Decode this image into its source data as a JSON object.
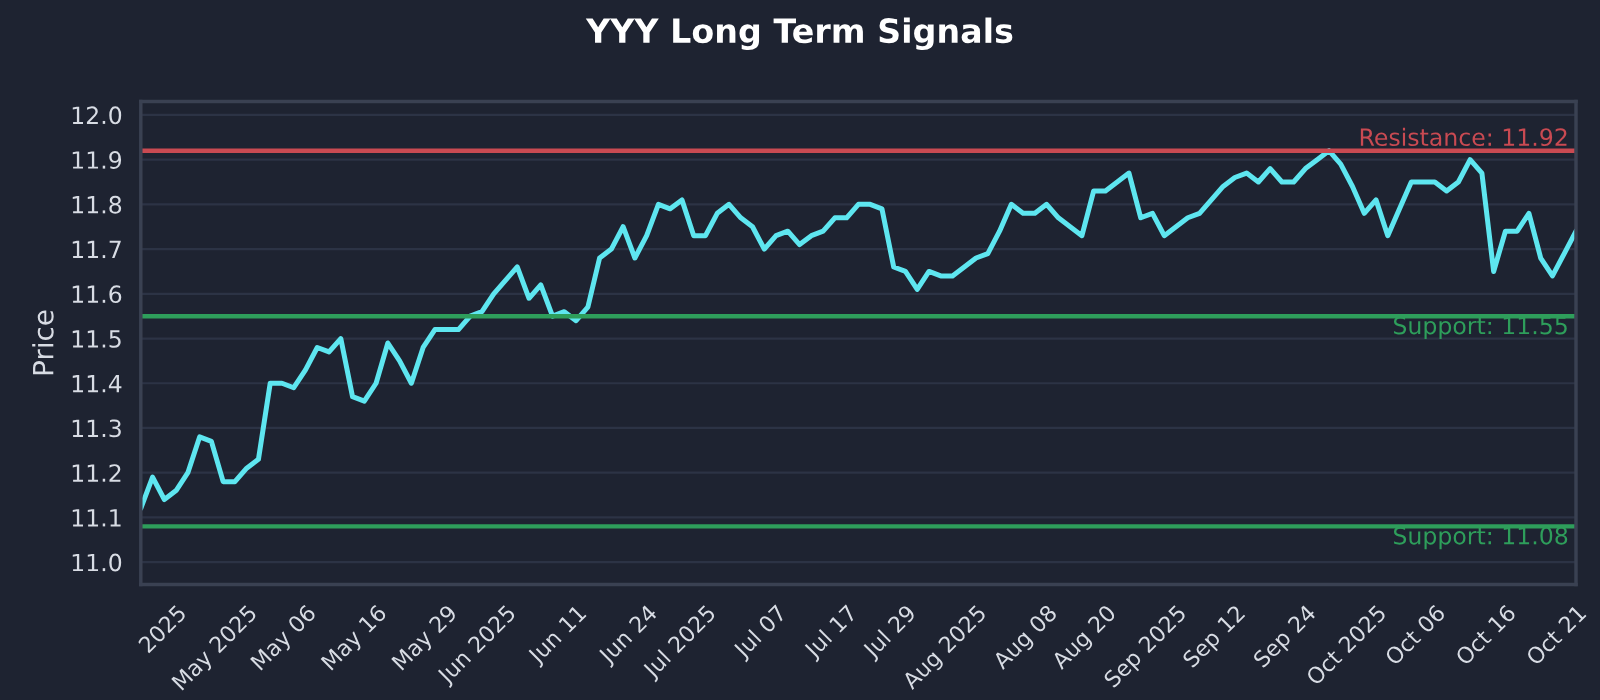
{
  "chart_data": {
    "type": "line",
    "title": "YYY Long Term Signals",
    "ylabel": "Price",
    "categories": [
      null,
      null,
      null,
      "2025",
      null,
      null,
      null,
      null,
      null,
      "May 2025",
      null,
      null,
      null,
      null,
      "May 06",
      null,
      null,
      null,
      null,
      null,
      "May 16",
      null,
      null,
      null,
      null,
      null,
      "May 29",
      null,
      null,
      null,
      null,
      "Jun 2025",
      null,
      null,
      null,
      null,
      null,
      "Jun 11",
      null,
      null,
      null,
      null,
      null,
      "Jun 24",
      null,
      null,
      null,
      null,
      "Jul 2025",
      null,
      null,
      null,
      null,
      null,
      "Jul 07",
      null,
      null,
      null,
      null,
      null,
      "Jul 17",
      null,
      null,
      null,
      null,
      "Jul 29",
      null,
      null,
      null,
      null,
      null,
      "Aug 2025",
      null,
      null,
      null,
      null,
      null,
      "Aug 08",
      null,
      null,
      null,
      null,
      "Aug 20",
      null,
      null,
      null,
      null,
      null,
      "Sep 2025",
      null,
      null,
      null,
      null,
      "Sep 12",
      null,
      null,
      null,
      null,
      null,
      "Sep 24",
      null,
      null,
      null,
      null,
      null,
      "Oct 2025",
      null,
      null,
      null,
      null,
      "Oct 06",
      null,
      null,
      null,
      null,
      null,
      "Oct 16",
      null,
      null,
      null,
      null,
      null,
      "Oct 21"
    ],
    "series": [
      {
        "color": "#5ee6f0",
        "values": [
          11.12,
          11.19,
          11.14,
          11.16,
          11.2,
          11.28,
          11.27,
          11.18,
          11.18,
          11.21,
          11.23,
          11.4,
          11.4,
          11.39,
          11.43,
          11.48,
          11.47,
          11.5,
          11.37,
          11.36,
          11.4,
          11.49,
          11.45,
          11.4,
          11.48,
          11.52,
          11.52,
          11.52,
          11.55,
          11.56,
          11.6,
          11.63,
          11.66,
          11.59,
          11.62,
          11.55,
          11.56,
          11.54,
          11.57,
          11.68,
          11.7,
          11.75,
          11.68,
          11.73,
          11.8,
          11.79,
          11.81,
          11.73,
          11.73,
          11.78,
          11.8,
          11.77,
          11.75,
          11.7,
          11.73,
          11.74,
          11.71,
          11.73,
          11.74,
          11.77,
          11.77,
          11.8,
          11.8,
          11.79,
          11.66,
          11.65,
          11.61,
          11.65,
          11.64,
          11.64,
          11.66,
          11.68,
          11.69,
          11.74,
          11.8,
          11.78,
          11.78,
          11.8,
          11.77,
          11.75,
          11.73,
          11.83,
          11.83,
          11.85,
          11.87,
          11.77,
          11.78,
          11.73,
          11.75,
          11.77,
          11.78,
          11.81,
          11.84,
          11.86,
          11.87,
          11.85,
          11.88,
          11.85,
          11.85,
          11.88,
          11.9,
          11.92,
          11.89,
          11.84,
          11.78,
          11.81,
          11.73,
          11.79,
          11.85,
          11.85,
          11.85,
          11.83,
          11.85,
          11.9,
          11.87,
          11.65,
          11.74,
          11.74,
          11.78,
          11.68,
          11.64,
          11.69,
          11.74
        ]
      }
    ],
    "ylim": [
      10.95,
      12.03
    ],
    "yticks": [
      {
        "value": 11.0,
        "label": "11.0"
      },
      11.1,
      11.2,
      11.3,
      11.4,
      11.5,
      11.6,
      11.7,
      11.8,
      11.9,
      {
        "value": 12.0,
        "label": "12.0"
      }
    ],
    "ref_lines": [
      {
        "axis": "y",
        "value": 11.92,
        "label": "Resistance: 11.92",
        "color": "#c94a52"
      },
      {
        "axis": "y",
        "value": 11.55,
        "label": "Support: 11.55",
        "color": "#2e9e5b"
      },
      {
        "axis": "y",
        "value": 11.08,
        "label": "Support: 11.08",
        "color": "#2e9e5b"
      }
    ],
    "grid": "y",
    "legend": false,
    "line_style": "solid",
    "marker": "none"
  }
}
